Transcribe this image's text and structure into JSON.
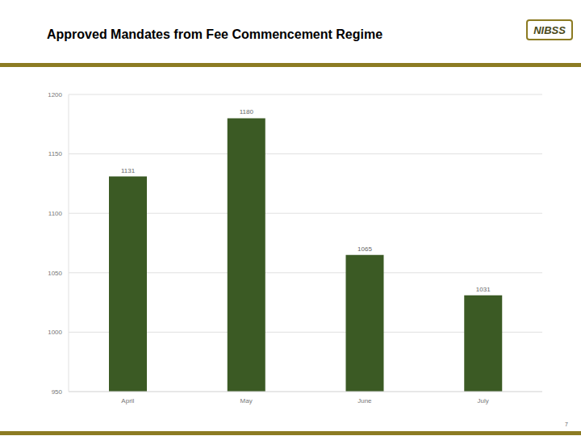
{
  "chart_data": {
    "type": "bar",
    "title": "Approved Mandates from Fee Commencement Regime",
    "categories": [
      "April",
      "May",
      "June",
      "July"
    ],
    "values": [
      1131,
      1180,
      1065,
      1031
    ],
    "color": "#3b5a24",
    "ylim": [
      950,
      1200
    ],
    "yticks": [
      950,
      1000,
      1050,
      1100,
      1150,
      1200
    ],
    "grid": true,
    "data_labels": true
  },
  "logo": "NIBSS",
  "page_number": "7"
}
